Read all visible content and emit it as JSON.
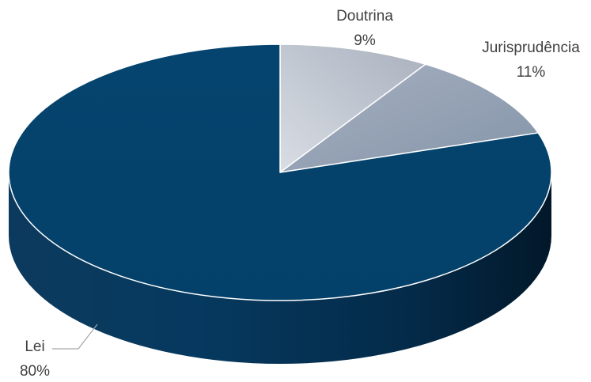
{
  "chart_data": {
    "type": "pie",
    "style": "3d",
    "title": "",
    "slices": [
      {
        "label": "Doutrina",
        "value": 9,
        "display": "9%",
        "color": "#b9c0cc"
      },
      {
        "label": "Jurisprudência",
        "value": 11,
        "display": "11%",
        "color": "#95a3b6"
      },
      {
        "label": "Lei",
        "value": 80,
        "display": "80%",
        "color": "#05436c"
      }
    ],
    "legend": "none"
  }
}
